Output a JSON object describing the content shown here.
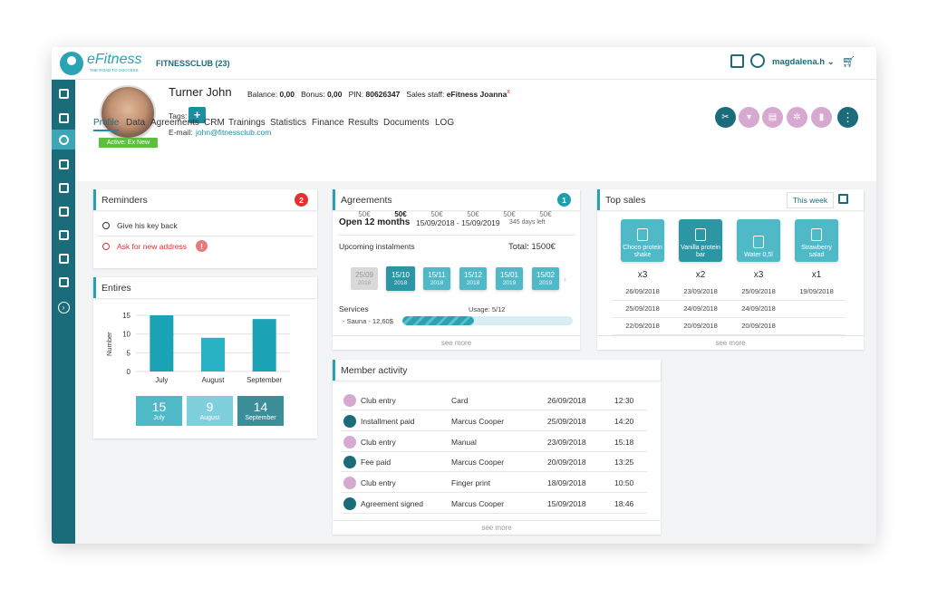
{
  "app": {
    "brand": "eFitness",
    "tagline": "THE ROAD TO SUCCESS",
    "club": "FITNESSCLUB (23)",
    "user": "magdalena.h"
  },
  "sidebar": {
    "items": [
      "stats-icon",
      "card-icon",
      "member-icon",
      "docs-icon",
      "building-icon",
      "calendar-icon",
      "flag-icon",
      "edit-icon",
      "train-icon",
      "chevron-right-icon"
    ]
  },
  "member": {
    "name": "Turner John",
    "balance_label": "Balance:",
    "balance": "0,00",
    "bonus_label": "Bonus:",
    "bonus": "0,00",
    "pin_label": "PIN:",
    "pin": "80626347",
    "staff_label": "Sales staff:",
    "staff": "eFitness Joanna",
    "staff_remove": "x",
    "tags_label": "Tags:",
    "email_label": "E-mail:",
    "email": "john@fitnessclub.com",
    "status": "Active: Ex New",
    "add_tag": "+"
  },
  "tabs": [
    "Profile",
    "Data",
    "Agreements",
    "CRM",
    "Trainings",
    "Statistics",
    "Finance",
    "Results",
    "Documents",
    "LOG"
  ],
  "actions": [
    "scan-icon",
    "cart-icon",
    "copy-icon",
    "settings-icon",
    "door-icon",
    "more-icon"
  ],
  "reminders": {
    "title": "Reminders",
    "count": "2",
    "items": [
      "Give his key back",
      "Ask for new address"
    ],
    "alert": "!"
  },
  "entires": {
    "title": "Entires"
  },
  "chart_data": {
    "type": "bar",
    "categories": [
      "July",
      "August",
      "September"
    ],
    "values": [
      15,
      9,
      14
    ],
    "ylabel": "Number",
    "ylim": [
      0,
      15
    ],
    "yticks": [
      "15",
      "10",
      "5",
      "0"
    ],
    "grid": true,
    "summary": [
      {
        "value": "15",
        "label": "July",
        "color": "#4fb9c8"
      },
      {
        "value": "9",
        "label": "August",
        "color": "#7fd0dc"
      },
      {
        "value": "14",
        "label": "September",
        "color": "#3c8f99"
      }
    ]
  },
  "agreements": {
    "title": "Agreements",
    "count": "1",
    "plan": "Open 12 months",
    "period": "15/09/2018 - 15/09/2019",
    "days_left": "345 days left",
    "upcoming_label": "Upcoming instalments",
    "total": "Total: 1500€",
    "instalments": [
      {
        "amount": "50€",
        "date": "25/09",
        "year": "2018",
        "state": "past"
      },
      {
        "amount": "50€",
        "date": "15/10",
        "year": "2018",
        "state": "current"
      },
      {
        "amount": "50€",
        "date": "15/11",
        "year": "2018",
        "state": "future"
      },
      {
        "amount": "50€",
        "date": "15/12",
        "year": "2018",
        "state": "future"
      },
      {
        "amount": "50€",
        "date": "15/01",
        "year": "2019",
        "state": "future"
      },
      {
        "amount": "50€",
        "date": "15/02",
        "year": "2019",
        "state": "future"
      }
    ],
    "services_label": "Services",
    "usage": "Usage: 5/12",
    "usage_fraction": 0.42,
    "service": "- Sauna - 12,60$",
    "see_more": "see more"
  },
  "top_sales": {
    "title": "Top sales",
    "period": "This week",
    "see_more": "see more",
    "items": [
      {
        "name": "Choco protein shake",
        "qty": "x3",
        "dates": [
          "26/09/2018",
          "25/09/2018",
          "22/09/2018"
        ]
      },
      {
        "name": "Vanilla protein bar",
        "qty": "x2",
        "dates": [
          "23/09/2018",
          "24/09/2018",
          "20/09/2018"
        ]
      },
      {
        "name": "Water 0,5l",
        "qty": "x3",
        "dates": [
          "25/09/2018",
          "24/09/2018",
          "20/09/2018"
        ]
      },
      {
        "name": "Strawberry salad",
        "qty": "x1",
        "dates": [
          "19/09/2018"
        ]
      }
    ]
  },
  "activity": {
    "title": "Member activity",
    "see_more": "see more",
    "rows": [
      {
        "type": "Club entry",
        "by": "Card",
        "date": "26/09/2018",
        "time": "12:30"
      },
      {
        "type": "Installment paid",
        "by": "Marcus Cooper",
        "date": "25/09/2018",
        "time": "14:20"
      },
      {
        "type": "Club entry",
        "by": "Manual",
        "date": "23/09/2018",
        "time": "15:18"
      },
      {
        "type": "Fee paid",
        "by": "Marcus Cooper",
        "date": "20/09/2018",
        "time": "13:25"
      },
      {
        "type": "Club entry",
        "by": "Finger print",
        "date": "18/09/2018",
        "time": "10:50"
      },
      {
        "type": "Agreement signed",
        "by": "Marcus Cooper",
        "date": "15/09/2018",
        "time": "18:46"
      }
    ]
  }
}
